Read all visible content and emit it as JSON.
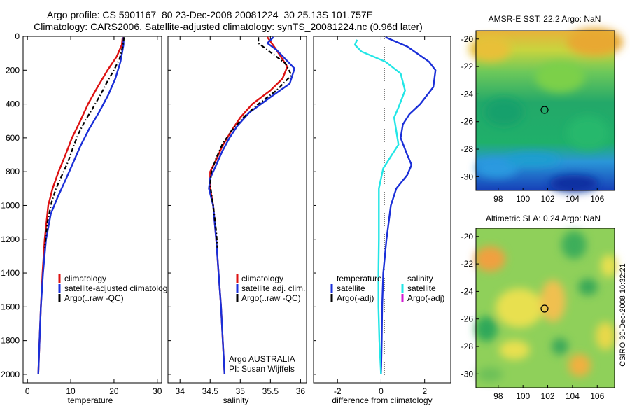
{
  "figure": {
    "title_line1": "Argo profile: CS 5901167_80 23-Dec-2008 20081224_30 25.13S 101.757E",
    "title_line2": "Climatology: CARS2006. Satellite-adjusted climatology: synTS_20081224.nc (0.96d later)",
    "side_stamp": "CSIRO 30-Dec-2008 10:32:21"
  },
  "colors": {
    "climatology": "#dd1111",
    "satellite": "#1a2fd8",
    "argo": "#000000",
    "cyan": "#22e6e6",
    "magenta": "#d21ad2"
  },
  "chart_data": [
    {
      "type": "line",
      "title": "",
      "xlabel": "temperature",
      "ylabel": "",
      "xlim": [
        -1,
        31
      ],
      "ylim": [
        2050,
        0
      ],
      "xticks": [
        0,
        10,
        20,
        30
      ],
      "yticks": [
        0,
        200,
        400,
        600,
        800,
        1000,
        1200,
        1400,
        1600,
        1800,
        2000
      ],
      "legend": {
        "placement": "lower-right",
        "entries": [
          "climatology",
          "satellite-adjusted climatology",
          "Argo(..raw -QC)"
        ]
      },
      "series": [
        {
          "name": "climatology",
          "color_key": "climatology",
          "style": "solid",
          "points": [
            [
              22.0,
              5
            ],
            [
              21.8,
              50
            ],
            [
              20.6,
              120
            ],
            [
              18.5,
              200
            ],
            [
              16.2,
              300
            ],
            [
              14.0,
              400
            ],
            [
              12.2,
              500
            ],
            [
              10.3,
              600
            ],
            [
              8.8,
              700
            ],
            [
              7.2,
              800
            ],
            [
              5.8,
              900
            ],
            [
              4.8,
              1000
            ],
            [
              4.0,
              1200
            ],
            [
              3.5,
              1400
            ],
            [
              3.1,
              1600
            ],
            [
              2.8,
              1800
            ],
            [
              2.5,
              2000
            ]
          ]
        },
        {
          "name": "satellite-adjusted climatology",
          "color_key": "satellite",
          "style": "solid",
          "points": [
            [
              22.2,
              5
            ],
            [
              22.2,
              50
            ],
            [
              21.5,
              150
            ],
            [
              20.3,
              250
            ],
            [
              18.6,
              350
            ],
            [
              16.5,
              450
            ],
            [
              14.2,
              550
            ],
            [
              12.2,
              650
            ],
            [
              10.5,
              750
            ],
            [
              8.8,
              850
            ],
            [
              7.0,
              950
            ],
            [
              5.4,
              1050
            ],
            [
              4.3,
              1200
            ],
            [
              3.6,
              1400
            ],
            [
              3.1,
              1600
            ],
            [
              2.8,
              1800
            ],
            [
              2.5,
              2000
            ]
          ]
        },
        {
          "name": "Argo(..raw -QC)",
          "color_key": "argo",
          "style": "dashdot",
          "points": [
            [
              22.3,
              5
            ],
            [
              22.1,
              50
            ],
            [
              21.3,
              130
            ],
            [
              20.0,
              200
            ],
            [
              18.6,
              260
            ],
            [
              17.0,
              340
            ],
            [
              15.2,
              420
            ],
            [
              13.3,
              500
            ],
            [
              11.7,
              580
            ],
            [
              10.5,
              660
            ],
            [
              9.4,
              740
            ],
            [
              8.0,
              820
            ],
            [
              6.6,
              900
            ],
            [
              5.6,
              980
            ],
            [
              4.6,
              1100
            ],
            [
              4.0,
              1250
            ]
          ]
        }
      ]
    },
    {
      "type": "line",
      "title": "",
      "xlabel": "salinity",
      "ylabel": "",
      "xlim": [
        33.8,
        36.1
      ],
      "ylim": [
        2050,
        0
      ],
      "xticks": [
        34,
        34.5,
        35,
        35.5,
        36
      ],
      "xtick_labels": [
        "34",
        "34.5",
        "35",
        "35.5",
        "36"
      ],
      "legend": {
        "placement": "lower-right",
        "entries": [
          "climatology",
          "satellite adj. clim.",
          "Argo(..raw -QC)"
        ]
      },
      "annotations": [
        "Argo AUSTRALIA",
        "PI: Susan Wijffels"
      ],
      "series": [
        {
          "name": "climatology",
          "color_key": "climatology",
          "style": "solid",
          "points": [
            [
              35.45,
              5
            ],
            [
              35.6,
              80
            ],
            [
              35.78,
              180
            ],
            [
              35.7,
              250
            ],
            [
              35.5,
              320
            ],
            [
              35.2,
              400
            ],
            [
              35.0,
              480
            ],
            [
              34.85,
              560
            ],
            [
              34.7,
              650
            ],
            [
              34.6,
              730
            ],
            [
              34.5,
              800
            ],
            [
              34.5,
              900
            ],
            [
              34.55,
              1000
            ],
            [
              34.6,
              1200
            ],
            [
              34.64,
              1400
            ],
            [
              34.68,
              1600
            ],
            [
              34.71,
              1800
            ],
            [
              34.74,
              2000
            ]
          ]
        },
        {
          "name": "satellite adj. clim.",
          "color_key": "satellite",
          "style": "solid",
          "points": [
            [
              35.55,
              5
            ],
            [
              35.45,
              40
            ],
            [
              35.6,
              80
            ],
            [
              35.9,
              190
            ],
            [
              35.82,
              280
            ],
            [
              35.5,
              360
            ],
            [
              35.15,
              450
            ],
            [
              34.95,
              530
            ],
            [
              34.82,
              600
            ],
            [
              34.7,
              680
            ],
            [
              34.6,
              760
            ],
            [
              34.5,
              840
            ],
            [
              34.48,
              900
            ],
            [
              34.55,
              1000
            ],
            [
              34.6,
              1200
            ],
            [
              34.64,
              1400
            ],
            [
              34.68,
              1600
            ],
            [
              34.71,
              1800
            ],
            [
              34.74,
              2000
            ]
          ]
        },
        {
          "name": "Argo(..raw -QC)",
          "color_key": "argo",
          "style": "dashdot",
          "points": [
            [
              35.3,
              5
            ],
            [
              35.3,
              40
            ],
            [
              35.45,
              80
            ],
            [
              35.75,
              160
            ],
            [
              35.85,
              230
            ],
            [
              35.6,
              320
            ],
            [
              35.3,
              400
            ],
            [
              35.05,
              480
            ],
            [
              34.85,
              560
            ],
            [
              34.7,
              640
            ],
            [
              34.6,
              720
            ],
            [
              34.52,
              800
            ],
            [
              34.5,
              880
            ],
            [
              34.55,
              1000
            ],
            [
              34.6,
              1150
            ],
            [
              34.62,
              1250
            ]
          ]
        }
      ]
    },
    {
      "type": "line",
      "title": "",
      "xlabel": "difference from climatology",
      "ylabel": "",
      "xlim": [
        -3.1,
        3.2
      ],
      "ylim": [
        2050,
        0
      ],
      "xticks": [
        -2,
        0,
        2
      ],
      "zero_line": true,
      "legend": {
        "placement": "lower-center",
        "left_header": "temperature",
        "right_header": "salinity",
        "left_entries": [
          "satellite",
          "Argo(-adj)"
        ],
        "right_entries": [
          "satellite",
          "Argo(-adj)"
        ]
      },
      "series": [
        {
          "name": "satellite",
          "group": "temperature",
          "color_key": "satellite",
          "style": "solid",
          "points": [
            [
              0.2,
              5
            ],
            [
              1.2,
              60
            ],
            [
              2.2,
              150
            ],
            [
              2.5,
              200
            ],
            [
              2.4,
              300
            ],
            [
              1.8,
              400
            ],
            [
              1.3,
              460
            ],
            [
              1.0,
              520
            ],
            [
              0.9,
              600
            ],
            [
              1.2,
              700
            ],
            [
              1.4,
              760
            ],
            [
              1.2,
              820
            ],
            [
              0.7,
              900
            ],
            [
              0.45,
              1000
            ],
            [
              0.25,
              1200
            ],
            [
              0.1,
              1400
            ],
            [
              0.05,
              1600
            ],
            [
              0.03,
              1800
            ],
            [
              0.0,
              2000
            ]
          ]
        },
        {
          "name": "satellite",
          "group": "salinity",
          "color_key": "cyan",
          "style": "solid",
          "points": [
            [
              -1.1,
              20
            ],
            [
              -1.2,
              50
            ],
            [
              -0.9,
              90
            ],
            [
              0.2,
              150
            ],
            [
              0.9,
              220
            ],
            [
              1.1,
              320
            ],
            [
              0.8,
              420
            ],
            [
              0.6,
              480
            ],
            [
              0.7,
              560
            ],
            [
              0.8,
              640
            ],
            [
              0.5,
              700
            ],
            [
              0.1,
              780
            ],
            [
              -0.1,
              900
            ],
            [
              -0.1,
              1200
            ],
            [
              -0.12,
              1400
            ],
            [
              -0.12,
              1600
            ],
            [
              -0.08,
              1800
            ],
            [
              0.0,
              2000
            ]
          ]
        }
      ]
    }
  ],
  "maps": [
    {
      "title": "AMSR-E SST: 22.2 Argo: NaN",
      "x_ticks": [
        "98",
        "100",
        "102",
        "104",
        "106"
      ],
      "y_ticks": [
        "-20",
        "-22",
        "-24",
        "-26",
        "-28",
        "-30"
      ],
      "marker": {
        "lon": 101.76,
        "lat": -25.13
      }
    },
    {
      "title": "Altimetric SLA: 0.24 Argo: NaN",
      "x_ticks": [
        "98",
        "100",
        "102",
        "104",
        "106"
      ],
      "y_ticks": [
        "-20",
        "-22",
        "-24",
        "-26",
        "-28",
        "-30"
      ],
      "marker": {
        "lon": 101.76,
        "lat": -25.13
      }
    }
  ]
}
